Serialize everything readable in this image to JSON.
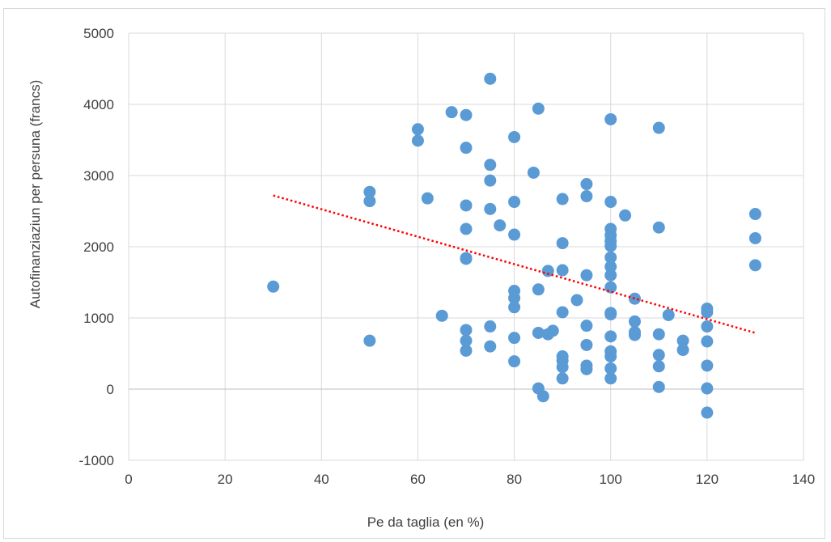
{
  "chart_data": {
    "type": "scatter",
    "title": "",
    "xlabel": "Pe da taglia (en %)",
    "ylabel": "Autofinanziaziun per persuna (francs)",
    "xlim": [
      0,
      140
    ],
    "ylim": [
      -1000,
      5000
    ],
    "x_ticks": [
      0,
      20,
      40,
      60,
      80,
      100,
      120,
      140
    ],
    "y_ticks": [
      -1000,
      0,
      1000,
      2000,
      3000,
      4000,
      5000
    ],
    "grid": true,
    "legend": "none",
    "marker_color": "#5b9bd5",
    "trendline": {
      "type": "linear",
      "color": "#ff0000",
      "style": "dotted",
      "x": [
        30,
        130
      ],
      "y": [
        2720,
        790
      ]
    },
    "points": [
      {
        "x": 30,
        "y": 1440
      },
      {
        "x": 50,
        "y": 2770
      },
      {
        "x": 50,
        "y": 2640
      },
      {
        "x": 50,
        "y": 680
      },
      {
        "x": 60,
        "y": 3650
      },
      {
        "x": 60,
        "y": 3490
      },
      {
        "x": 62,
        "y": 2680
      },
      {
        "x": 65,
        "y": 1030
      },
      {
        "x": 67,
        "y": 3890
      },
      {
        "x": 70,
        "y": 3850
      },
      {
        "x": 70,
        "y": 3390
      },
      {
        "x": 70,
        "y": 2580
      },
      {
        "x": 70,
        "y": 2250
      },
      {
        "x": 70,
        "y": 1840
      },
      {
        "x": 70,
        "y": 1830
      },
      {
        "x": 70,
        "y": 830
      },
      {
        "x": 70,
        "y": 680
      },
      {
        "x": 70,
        "y": 540
      },
      {
        "x": 75,
        "y": 4360
      },
      {
        "x": 75,
        "y": 3150
      },
      {
        "x": 75,
        "y": 2930
      },
      {
        "x": 75,
        "y": 2530
      },
      {
        "x": 75,
        "y": 880
      },
      {
        "x": 75,
        "y": 600
      },
      {
        "x": 77,
        "y": 2300
      },
      {
        "x": 80,
        "y": 3540
      },
      {
        "x": 80,
        "y": 2630
      },
      {
        "x": 80,
        "y": 2170
      },
      {
        "x": 80,
        "y": 1380
      },
      {
        "x": 80,
        "y": 1280
      },
      {
        "x": 80,
        "y": 1150
      },
      {
        "x": 80,
        "y": 720
      },
      {
        "x": 80,
        "y": 390
      },
      {
        "x": 84,
        "y": 3040
      },
      {
        "x": 85,
        "y": 3940
      },
      {
        "x": 85,
        "y": 1400
      },
      {
        "x": 85,
        "y": 790
      },
      {
        "x": 85,
        "y": 10
      },
      {
        "x": 86,
        "y": -100
      },
      {
        "x": 87,
        "y": 1660
      },
      {
        "x": 87,
        "y": 770
      },
      {
        "x": 88,
        "y": 820
      },
      {
        "x": 90,
        "y": 2670
      },
      {
        "x": 90,
        "y": 2050
      },
      {
        "x": 90,
        "y": 1670
      },
      {
        "x": 90,
        "y": 1080
      },
      {
        "x": 90,
        "y": 460
      },
      {
        "x": 90,
        "y": 400
      },
      {
        "x": 90,
        "y": 310
      },
      {
        "x": 90,
        "y": 150
      },
      {
        "x": 93,
        "y": 1250
      },
      {
        "x": 95,
        "y": 2880
      },
      {
        "x": 95,
        "y": 2710
      },
      {
        "x": 95,
        "y": 1600
      },
      {
        "x": 95,
        "y": 890
      },
      {
        "x": 95,
        "y": 620
      },
      {
        "x": 95,
        "y": 330
      },
      {
        "x": 95,
        "y": 280
      },
      {
        "x": 100,
        "y": 3790
      },
      {
        "x": 100,
        "y": 2630
      },
      {
        "x": 100,
        "y": 2250
      },
      {
        "x": 100,
        "y": 2160
      },
      {
        "x": 100,
        "y": 2080
      },
      {
        "x": 100,
        "y": 2010
      },
      {
        "x": 100,
        "y": 1850
      },
      {
        "x": 100,
        "y": 1720
      },
      {
        "x": 100,
        "y": 1600
      },
      {
        "x": 100,
        "y": 1430
      },
      {
        "x": 100,
        "y": 1070
      },
      {
        "x": 100,
        "y": 1050
      },
      {
        "x": 100,
        "y": 740
      },
      {
        "x": 100,
        "y": 530
      },
      {
        "x": 100,
        "y": 460
      },
      {
        "x": 100,
        "y": 290
      },
      {
        "x": 100,
        "y": 150
      },
      {
        "x": 103,
        "y": 2440
      },
      {
        "x": 105,
        "y": 1270
      },
      {
        "x": 105,
        "y": 950
      },
      {
        "x": 105,
        "y": 800
      },
      {
        "x": 105,
        "y": 760
      },
      {
        "x": 110,
        "y": 3670
      },
      {
        "x": 110,
        "y": 2270
      },
      {
        "x": 110,
        "y": 770
      },
      {
        "x": 110,
        "y": 480
      },
      {
        "x": 110,
        "y": 320
      },
      {
        "x": 110,
        "y": 30
      },
      {
        "x": 112,
        "y": 1040
      },
      {
        "x": 115,
        "y": 680
      },
      {
        "x": 115,
        "y": 550
      },
      {
        "x": 120,
        "y": 1130
      },
      {
        "x": 120,
        "y": 1080
      },
      {
        "x": 120,
        "y": 880
      },
      {
        "x": 120,
        "y": 670
      },
      {
        "x": 120,
        "y": 330
      },
      {
        "x": 120,
        "y": 10
      },
      {
        "x": 120,
        "y": -330
      },
      {
        "x": 130,
        "y": 2460
      },
      {
        "x": 130,
        "y": 2120
      },
      {
        "x": 130,
        "y": 1740
      }
    ]
  }
}
